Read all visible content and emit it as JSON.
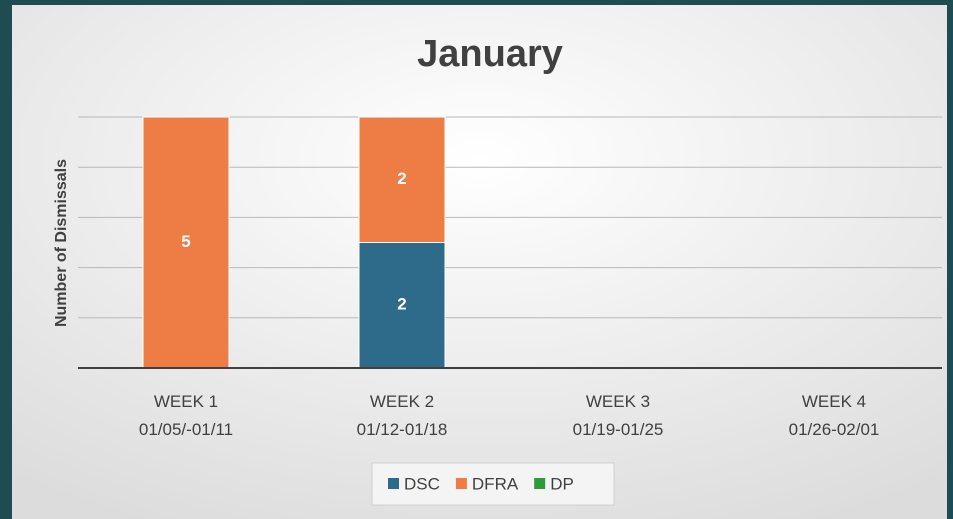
{
  "chart_data": {
    "type": "bar",
    "stacking": "percent",
    "title": "January",
    "y_label": "Number of Dismissals",
    "categories": [
      [
        "WEEK 1",
        "01/05/-01/11"
      ],
      [
        "WEEK 2",
        "01/12-01/18"
      ],
      [
        "WEEK 3",
        "01/19-01/25"
      ],
      [
        "WEEK 4",
        "01/26-02/01"
      ]
    ],
    "series": [
      {
        "name": "DSC",
        "color": "#2e6b8a",
        "values": [
          0,
          2,
          0,
          0
        ]
      },
      {
        "name": "DFRA",
        "color": "#ed7d45",
        "values": [
          5,
          2,
          0,
          0
        ]
      },
      {
        "name": "DP",
        "color": "#2e9a3a",
        "values": [
          0,
          0,
          0,
          0
        ]
      }
    ],
    "ylim": [
      0,
      100
    ],
    "yticks": [
      0,
      20,
      40,
      60,
      80,
      100
    ],
    "grid": true,
    "legend": "bottom"
  }
}
